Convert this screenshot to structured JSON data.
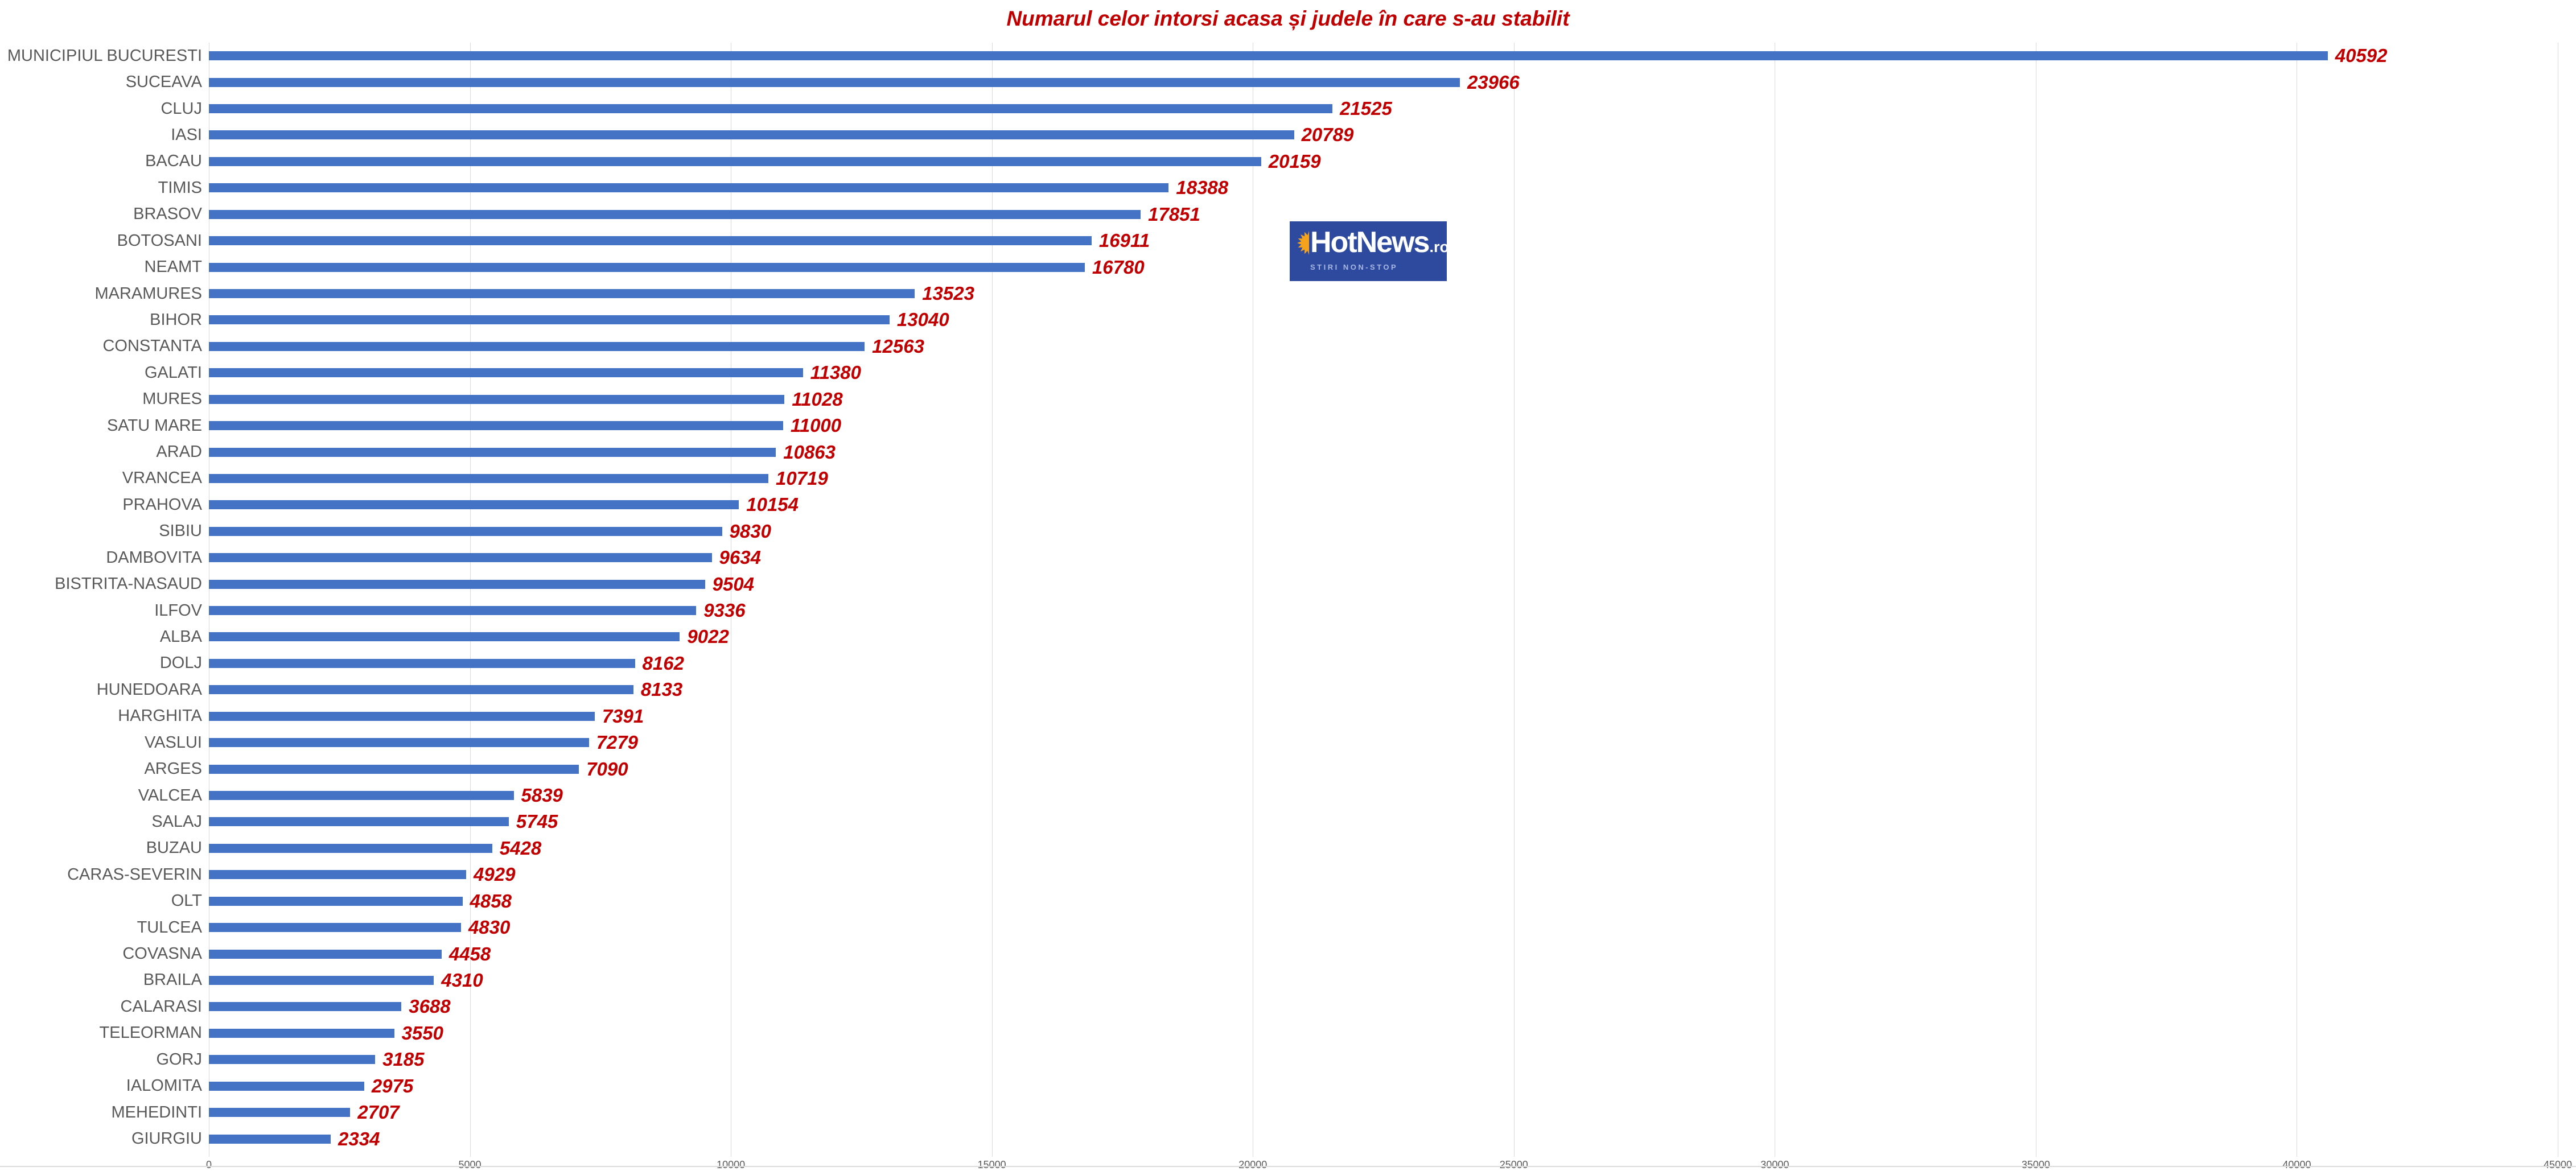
{
  "title": "Numarul celor intorsi acasa și judele în care s-au stabilit",
  "colors": {
    "bar": "#4472c4",
    "value_label": "#c00000",
    "title": "#c00000",
    "category_label": "#595959",
    "gridline": "#d9d9d9",
    "logo_background": "#2d4a9e",
    "logo_sun": "#f5a31c",
    "logo_tagline": "#a8b8e2"
  },
  "logo": {
    "name": "HotNews",
    "suffix": ".ro",
    "tagline": "STIRI NON-STOP"
  },
  "chart_data": {
    "type": "bar",
    "orientation": "horizontal",
    "title": "Numarul celor intorsi acasa și judele în care s-au stabilit",
    "xlabel": "",
    "ylabel": "",
    "xlim": [
      0,
      45000
    ],
    "x_ticks": [
      0,
      5000,
      10000,
      15000,
      20000,
      25000,
      30000,
      35000,
      40000,
      45000
    ],
    "grid": true,
    "value_labels": true,
    "categories": [
      "MUNICIPIUL BUCURESTI",
      "SUCEAVA",
      "CLUJ",
      "IASI",
      "BACAU",
      "TIMIS",
      "BRASOV",
      "BOTOSANI",
      "NEAMT",
      "MARAMURES",
      "BIHOR",
      "CONSTANTA",
      "GALATI",
      "MURES",
      "SATU MARE",
      "ARAD",
      "VRANCEA",
      "PRAHOVA",
      "SIBIU",
      "DAMBOVITA",
      "BISTRITA-NASAUD",
      "ILFOV",
      "ALBA",
      "DOLJ",
      "HUNEDOARA",
      "HARGHITA",
      "VASLUI",
      "ARGES",
      "VALCEA",
      "SALAJ",
      "BUZAU",
      "CARAS-SEVERIN",
      "OLT",
      "TULCEA",
      "COVASNA",
      "BRAILA",
      "CALARASI",
      "TELEORMAN",
      "GORJ",
      "IALOMITA",
      "MEHEDINTI",
      "GIURGIU"
    ],
    "values": [
      40592,
      23966,
      21525,
      20789,
      20159,
      18388,
      17851,
      16911,
      16780,
      13523,
      13040,
      12563,
      11380,
      11028,
      11000,
      10863,
      10719,
      10154,
      9830,
      9634,
      9504,
      9336,
      9022,
      8162,
      8133,
      7391,
      7279,
      7090,
      5839,
      5745,
      5428,
      4929,
      4858,
      4830,
      4458,
      4310,
      3688,
      3550,
      3185,
      2975,
      2707,
      2334
    ]
  }
}
